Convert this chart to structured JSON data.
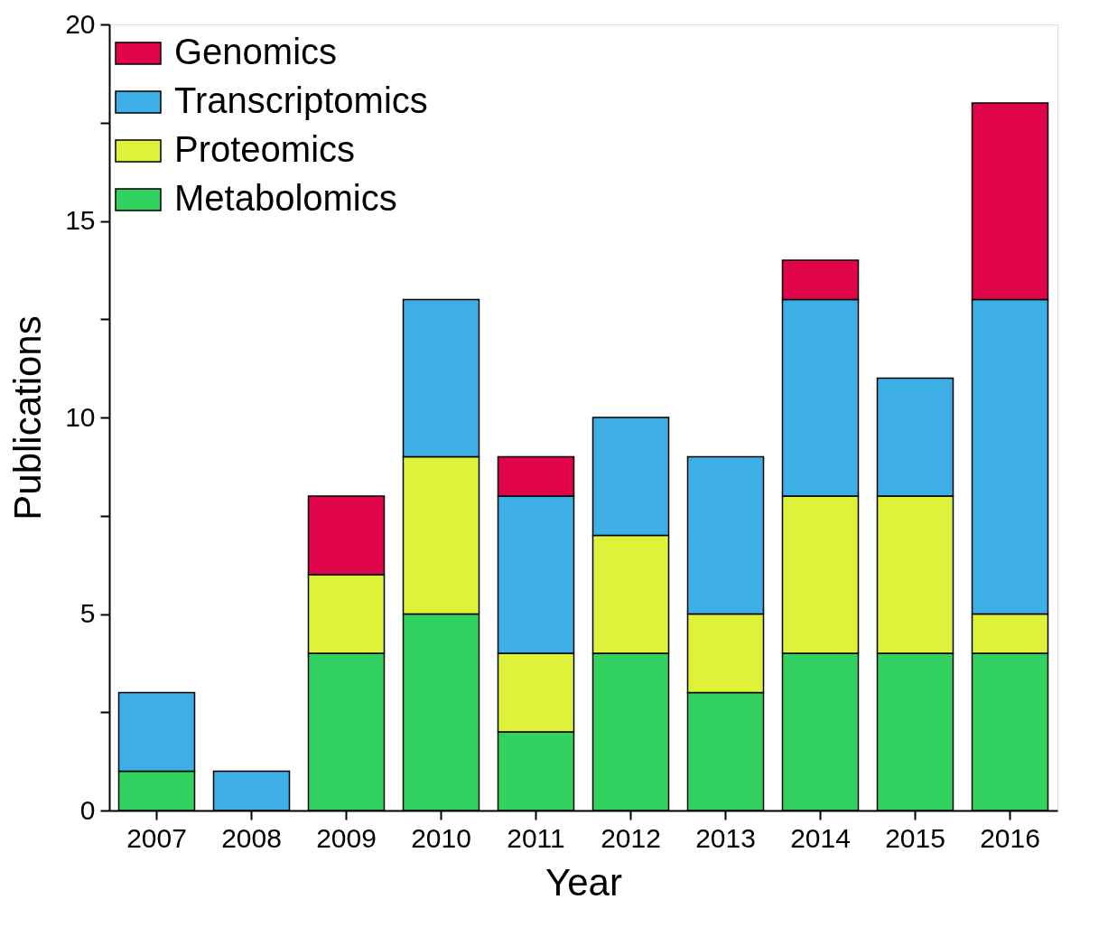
{
  "chart_data": {
    "type": "bar",
    "stacked": true,
    "xlabel": "Year",
    "ylabel": "Publications",
    "categories": [
      "2007",
      "2008",
      "2009",
      "2010",
      "2011",
      "2012",
      "2013",
      "2014",
      "2015",
      "2016"
    ],
    "series": [
      {
        "name": "Metabolomics",
        "color": "#33d15f",
        "values": [
          1,
          0,
          4,
          5,
          2,
          4,
          3,
          4,
          4,
          4
        ]
      },
      {
        "name": "Proteomics",
        "color": "#dff23a",
        "values": [
          0,
          0,
          2,
          4,
          2,
          3,
          2,
          4,
          4,
          1
        ]
      },
      {
        "name": "Transcriptomics",
        "color": "#3daee6",
        "values": [
          2,
          1,
          0,
          4,
          4,
          3,
          4,
          5,
          3,
          8
        ]
      },
      {
        "name": "Genomics",
        "color": "#e0054a",
        "values": [
          0,
          0,
          2,
          0,
          1,
          0,
          0,
          1,
          0,
          5
        ]
      }
    ],
    "ylim": [
      0,
      20
    ],
    "yticks": [
      0,
      {
        "value": 2.5,
        "label": null
      },
      5,
      {
        "value": 7.5,
        "label": null
      },
      10,
      {
        "value": 12.5,
        "label": null
      },
      15,
      {
        "value": 17.5,
        "label": null
      },
      20
    ],
    "grid": false,
    "legend": "top left"
  }
}
